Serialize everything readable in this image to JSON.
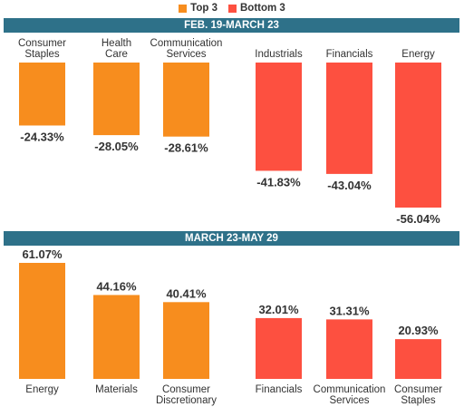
{
  "legend": {
    "items": [
      {
        "label": "Top 3",
        "color": "#f78d1e"
      },
      {
        "label": "Bottom 3",
        "color": "#fd5040"
      }
    ]
  },
  "chart_data": [
    {
      "type": "bar",
      "title": "FEB. 19-MARCH 23",
      "categories": [
        "Consumer Staples",
        "Health Care",
        "Communication Services",
        "Industrials",
        "Financials",
        "Energy"
      ],
      "values": [
        -24.33,
        -28.05,
        -28.61,
        -41.83,
        -43.04,
        -56.04
      ],
      "value_labels": [
        "-24.33%",
        "-28.05%",
        "-28.61%",
        "-41.83%",
        "-43.04%",
        "-56.04%"
      ],
      "groups": [
        "Top 3",
        "Top 3",
        "Top 3",
        "Bottom 3",
        "Bottom 3",
        "Bottom 3"
      ],
      "unit": "%",
      "ylim": [
        -56.04,
        0
      ],
      "grid": false,
      "legend": "top-center"
    },
    {
      "type": "bar",
      "title": "MARCH 23-MAY 29",
      "categories": [
        "Energy",
        "Materials",
        "Consumer Discretionary",
        "Financials",
        "Communication Services",
        "Consumer Staples"
      ],
      "values": [
        61.07,
        44.16,
        40.41,
        32.01,
        31.31,
        20.93
      ],
      "value_labels": [
        "61.07%",
        "44.16%",
        "40.41%",
        "32.01%",
        "31.31%",
        "20.93%"
      ],
      "groups": [
        "Top 3",
        "Top 3",
        "Top 3",
        "Bottom 3",
        "Bottom 3",
        "Bottom 3"
      ],
      "unit": "%",
      "ylim": [
        0,
        61.07
      ],
      "grid": false,
      "legend": "top-center"
    }
  ]
}
